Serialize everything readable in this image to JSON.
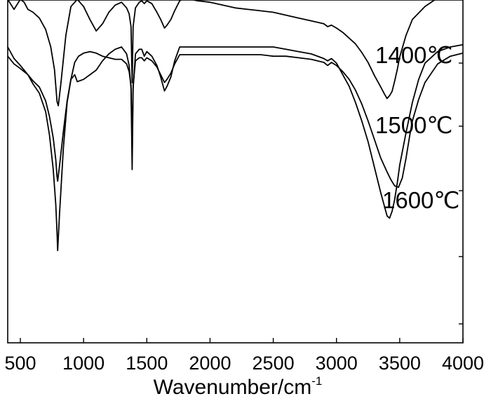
{
  "chart_data": {
    "type": "line",
    "title": "",
    "xlabel": "Wavenumber/cm",
    "xlabel_sup": "-1",
    "ylabel": "",
    "xlim": [
      400,
      4000
    ],
    "xticks": [
      500,
      1000,
      1500,
      2000,
      2500,
      3000,
      3500,
      4000
    ],
    "yaxis_ticks_shown": false,
    "grid": false,
    "legend": "none (series labelled directly on plot)",
    "series": [
      {
        "name": "1400℃",
        "x": [
          400,
          450,
          500,
          530,
          560,
          600,
          650,
          700,
          740,
          770,
          790,
          800,
          820,
          860,
          900,
          950,
          1000,
          1050,
          1100,
          1150,
          1200,
          1250,
          1300,
          1340,
          1360,
          1375,
          1384,
          1392,
          1410,
          1440,
          1460,
          1480,
          1500,
          1540,
          1580,
          1610,
          1640,
          1660,
          1690,
          1720,
          1760,
          1800,
          1850,
          1900,
          2000,
          2100,
          2200,
          2300,
          2400,
          2500,
          2600,
          2700,
          2800,
          2900,
          2930,
          2960,
          3000,
          3050,
          3100,
          3150,
          3200,
          3250,
          3300,
          3350,
          3380,
          3400,
          3420,
          3440,
          3460,
          3480,
          3500,
          3550,
          3600,
          3700,
          3800,
          3900,
          4000
        ],
        "y": [
          0.99,
          0.92,
          0.99,
          0.97,
          0.92,
          0.9,
          0.86,
          0.78,
          0.66,
          0.5,
          0.28,
          0.25,
          0.4,
          0.74,
          0.94,
          0.99,
          0.94,
          0.85,
          0.77,
          0.82,
          0.9,
          0.95,
          0.97,
          0.93,
          0.89,
          0.8,
          0.41,
          0.8,
          0.93,
          0.97,
          0.98,
          0.96,
          0.98,
          0.96,
          0.9,
          0.85,
          0.79,
          0.81,
          0.85,
          0.91,
          0.98,
          1.0,
          0.99,
          0.98,
          0.97,
          0.95,
          0.93,
          0.92,
          0.91,
          0.9,
          0.88,
          0.86,
          0.84,
          0.82,
          0.8,
          0.81,
          0.79,
          0.76,
          0.72,
          0.68,
          0.62,
          0.55,
          0.46,
          0.38,
          0.33,
          0.3,
          0.32,
          0.35,
          0.42,
          0.5,
          0.59,
          0.74,
          0.85,
          0.94,
          1.0,
          1.05,
          1.09
        ]
      },
      {
        "name": "1500℃",
        "x": [
          400,
          450,
          500,
          560,
          600,
          650,
          700,
          730,
          760,
          780,
          790,
          795,
          810,
          840,
          870,
          900,
          930,
          960,
          1000,
          1050,
          1100,
          1150,
          1200,
          1250,
          1300,
          1340,
          1360,
          1375,
          1384,
          1392,
          1410,
          1440,
          1460,
          1480,
          1500,
          1540,
          1580,
          1610,
          1640,
          1660,
          1690,
          1720,
          1760,
          1800,
          1900,
          2000,
          2100,
          2200,
          2300,
          2400,
          2500,
          2600,
          2700,
          2800,
          2900,
          2930,
          2960,
          3000,
          3050,
          3100,
          3150,
          3200,
          3250,
          3300,
          3350,
          3400,
          3430,
          3460,
          3490,
          3520,
          3550,
          3580,
          3600,
          3650,
          3700,
          3800,
          3900,
          4000
        ],
        "y": [
          0.99,
          0.94,
          0.91,
          0.87,
          0.83,
          0.79,
          0.7,
          0.6,
          0.46,
          0.32,
          0.21,
          0.18,
          0.28,
          0.5,
          0.7,
          0.84,
          0.95,
          0.99,
          1.01,
          1.02,
          1.01,
          0.99,
          0.98,
          0.97,
          0.97,
          0.94,
          0.89,
          0.8,
          0.42,
          0.8,
          0.96,
          0.98,
          0.98,
          0.96,
          0.98,
          0.96,
          0.92,
          0.87,
          0.82,
          0.84,
          0.88,
          0.94,
          1.0,
          1.0,
          1.0,
          1.0,
          1.0,
          1.0,
          1.0,
          1.0,
          0.99,
          0.99,
          0.98,
          0.97,
          0.95,
          0.93,
          0.95,
          0.93,
          0.89,
          0.84,
          0.77,
          0.68,
          0.57,
          0.45,
          0.33,
          0.24,
          0.19,
          0.15,
          0.14,
          0.2,
          0.33,
          0.48,
          0.57,
          0.71,
          0.82,
          0.94,
          0.99,
          1.01
        ]
      },
      {
        "name": "1600℃",
        "x": [
          400,
          450,
          500,
          560,
          600,
          650,
          700,
          730,
          760,
          780,
          790,
          795,
          810,
          840,
          870,
          900,
          930,
          950,
          1000,
          1050,
          1100,
          1150,
          1200,
          1250,
          1300,
          1340,
          1360,
          1375,
          1384,
          1392,
          1410,
          1440,
          1460,
          1480,
          1500,
          1540,
          1580,
          1610,
          1640,
          1660,
          1690,
          1720,
          1760,
          1800,
          1900,
          2000,
          2100,
          2200,
          2300,
          2400,
          2500,
          2600,
          2700,
          2800,
          2900,
          2930,
          2960,
          3000,
          3050,
          3100,
          3150,
          3200,
          3250,
          3300,
          3350,
          3380,
          3400,
          3420,
          3440,
          3460,
          3480,
          3500,
          3550,
          3600,
          3650,
          3700,
          3800,
          3900,
          4000
        ],
        "y": [
          1.0,
          0.95,
          0.92,
          0.88,
          0.84,
          0.8,
          0.72,
          0.62,
          0.47,
          0.32,
          0.2,
          0.12,
          0.28,
          0.56,
          0.76,
          0.86,
          0.88,
          0.85,
          0.86,
          0.88,
          0.9,
          0.94,
          0.97,
          0.99,
          1.0,
          0.97,
          0.92,
          0.82,
          0.47,
          0.82,
          0.97,
          0.99,
          0.99,
          0.96,
          0.98,
          0.96,
          0.92,
          0.87,
          0.81,
          0.83,
          0.87,
          0.94,
          1.0,
          1.0,
          1.0,
          1.0,
          1.0,
          1.0,
          1.0,
          1.0,
          1.0,
          0.99,
          0.98,
          0.97,
          0.95,
          0.94,
          0.95,
          0.93,
          0.88,
          0.83,
          0.76,
          0.68,
          0.59,
          0.48,
          0.37,
          0.31,
          0.27,
          0.26,
          0.29,
          0.34,
          0.41,
          0.49,
          0.63,
          0.76,
          0.86,
          0.93,
          0.98,
          1.0,
          1.01
        ]
      }
    ]
  }
}
